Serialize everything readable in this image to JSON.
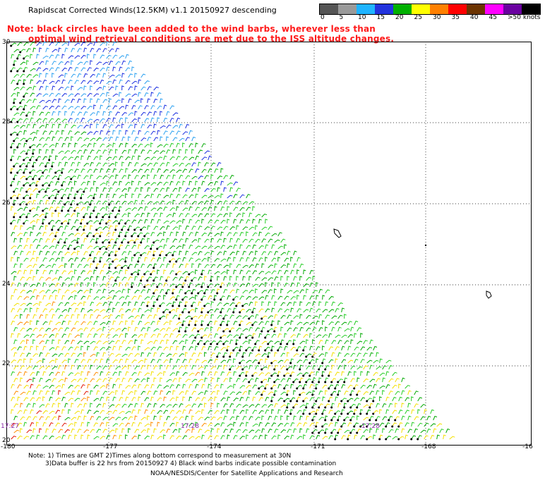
{
  "header": {
    "title": "Rapidscat Corrected Winds(12.5KM) v1.1 20150927 descending",
    "note_line1": "Note: black circles have been added to the wind barbs, wherever less than",
    "note_line2": "optimal wind retrieval conditions are met due to the ISS altitude changes."
  },
  "legend": {
    "labels": [
      "0",
      "5",
      "10",
      "15",
      "20",
      "25",
      "30",
      "35",
      "40",
      "45",
      ">50 knots"
    ],
    "colors": [
      "#555555",
      "#9a9a9a",
      "#1fb4ff",
      "#2233dd",
      "#00b000",
      "#ffff00",
      "#ff8000",
      "#ff0000",
      "#6b3300",
      "#ff00ff",
      "#6a00a0",
      "#000000"
    ]
  },
  "map": {
    "lat_labels": [
      "30",
      "28",
      "26",
      "24",
      "22",
      "20"
    ],
    "lon_labels": [
      "-180",
      "-177",
      "-174",
      "-171",
      "-168",
      "-16"
    ],
    "time_labels": [
      "17:27",
      "17:28",
      "17:28"
    ],
    "barb_colors": {
      "blue": "#1a2ee0",
      "cyan": "#2aa0f0",
      "green": "#00a800",
      "lightgreen": "#22cc22",
      "yellow": "#f3e000",
      "orange": "#ff8c00",
      "red": "#e01000",
      "black": "#000000"
    }
  },
  "footer": {
    "line1": "Note: 1) Times are GMT 2)Times along bottom correspond to measurement at 30N",
    "line2": "3)Data buffer is 22 hrs from 20150927 4) Black wind barbs indicate possible contamination",
    "line3": "NOAA/NESDIS/Center for Satellite Applications and Research"
  }
}
